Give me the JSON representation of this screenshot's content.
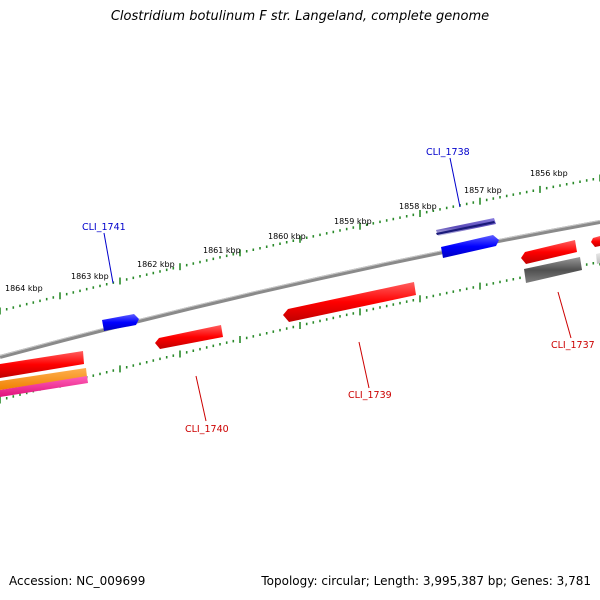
{
  "title": "Clostridium botulinum F str. Langeland, complete genome",
  "footer": {
    "accession": "Accession: NC_009699",
    "summary": "Topology: circular; Length: 3,995,387 bp; Genes: 3,781"
  },
  "colors": {
    "background": "#ffffff",
    "backbone": "#808080",
    "tick": "#2a8a2a",
    "forward_gene": "#ff1a1a",
    "reverse_gene": "#1a1aff",
    "blue_label": "#0000cc",
    "red_label": "#cc0000",
    "purple_gene": "#6b5bc0",
    "gray_gene": "#5a5a5a",
    "orange_gene": "#ff9020",
    "pink_gene": "#ff2a9a"
  },
  "scale_labels": [
    {
      "id": "kbp-1856",
      "text": "1856 kbp"
    },
    {
      "id": "kbp-1857",
      "text": "1857 kbp"
    },
    {
      "id": "kbp-1858",
      "text": "1858 kbp"
    },
    {
      "id": "kbp-1859",
      "text": "1859 kbp"
    },
    {
      "id": "kbp-1860",
      "text": "1860 kbp"
    },
    {
      "id": "kbp-1861",
      "text": "1861 kbp"
    },
    {
      "id": "kbp-1862",
      "text": "1862 kbp"
    },
    {
      "id": "kbp-1863",
      "text": "1863 kbp"
    },
    {
      "id": "kbp-1864",
      "text": "1864 kbp"
    }
  ],
  "gene_labels": [
    {
      "id": "cli-1738",
      "text": "CLI_1738",
      "strand": "reverse"
    },
    {
      "id": "cli-1741",
      "text": "CLI_1741",
      "strand": "reverse"
    },
    {
      "id": "cli-1737",
      "text": "CLI_1737",
      "strand": "forward"
    },
    {
      "id": "cli-1739",
      "text": "CLI_1739",
      "strand": "forward"
    },
    {
      "id": "cli-1740",
      "text": "CLI_1740",
      "strand": "forward"
    }
  ]
}
